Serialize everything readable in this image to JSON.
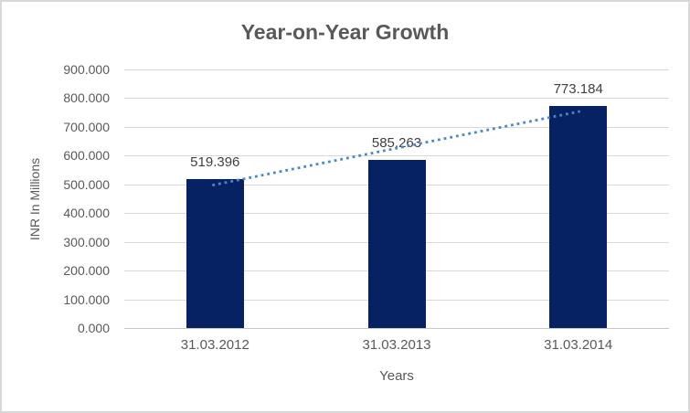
{
  "window": {
    "background": "#ffffff",
    "border_color": "#d8d8d8"
  },
  "chart_data": {
    "type": "bar",
    "title": "Year-on-Year Growth",
    "categories": [
      "31.03.2012",
      "31.03.2013",
      "31.03.2014"
    ],
    "values": [
      519.396,
      585.263,
      773.184
    ],
    "data_labels": [
      "519.396",
      "585.263",
      "773.184"
    ],
    "xlabel": "Years",
    "ylabel": "INR In Millions",
    "ylim": [
      0,
      900
    ],
    "ytick_step": 100,
    "ytick_labels": [
      "0.000",
      "100.000",
      "200.000",
      "300.000",
      "400.000",
      "500.000",
      "600.000",
      "700.000",
      "800.000",
      "900.000"
    ],
    "grid": true,
    "legend": "none",
    "trendline": {
      "type": "linear",
      "style": "dotted"
    },
    "colors": {
      "bar": "#062263",
      "trendline": "#4a87c8",
      "gridline": "#d9d9d9",
      "axis_line": "#c6c6c6",
      "title_text": "#595959",
      "axis_text": "#595959",
      "data_label_text": "#404040"
    }
  }
}
